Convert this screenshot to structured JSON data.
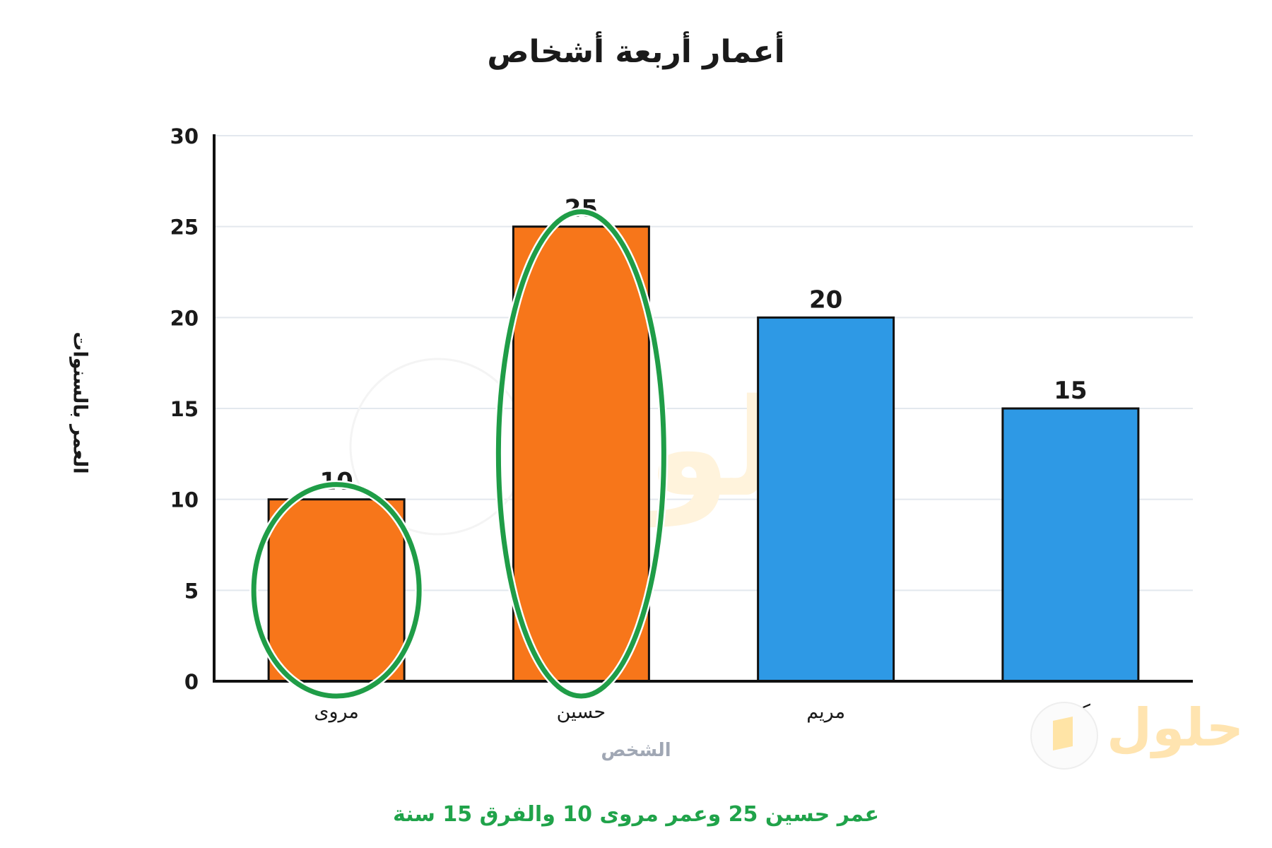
{
  "chart_data": {
    "type": "bar",
    "title": "أعمار أربعة أشخاص",
    "xlabel": "الشخص",
    "ylabel": "العمر بالسنوات",
    "ylim": [
      0,
      30
    ],
    "yticks": [
      0,
      5,
      10,
      15,
      20,
      25,
      30
    ],
    "grid": true,
    "categories": [
      "مروى",
      "حسين",
      "مريم",
      "كمال"
    ],
    "values": [
      10,
      25,
      20,
      15
    ],
    "data_labels": [
      "10",
      "25",
      "20",
      "15"
    ],
    "bar_colors": [
      "#f7761a",
      "#f7761a",
      "#2e99e5",
      "#2e99e5"
    ],
    "highlighted": [
      "مروى",
      "حسين"
    ],
    "highlight_color": "#1f9d47",
    "annotation": "عمر حسين 25 وعمر مروى 10 والفرق 15 سنة",
    "annotation_color": "#20a34a"
  },
  "watermark": {
    "logo_text": "حلول"
  }
}
